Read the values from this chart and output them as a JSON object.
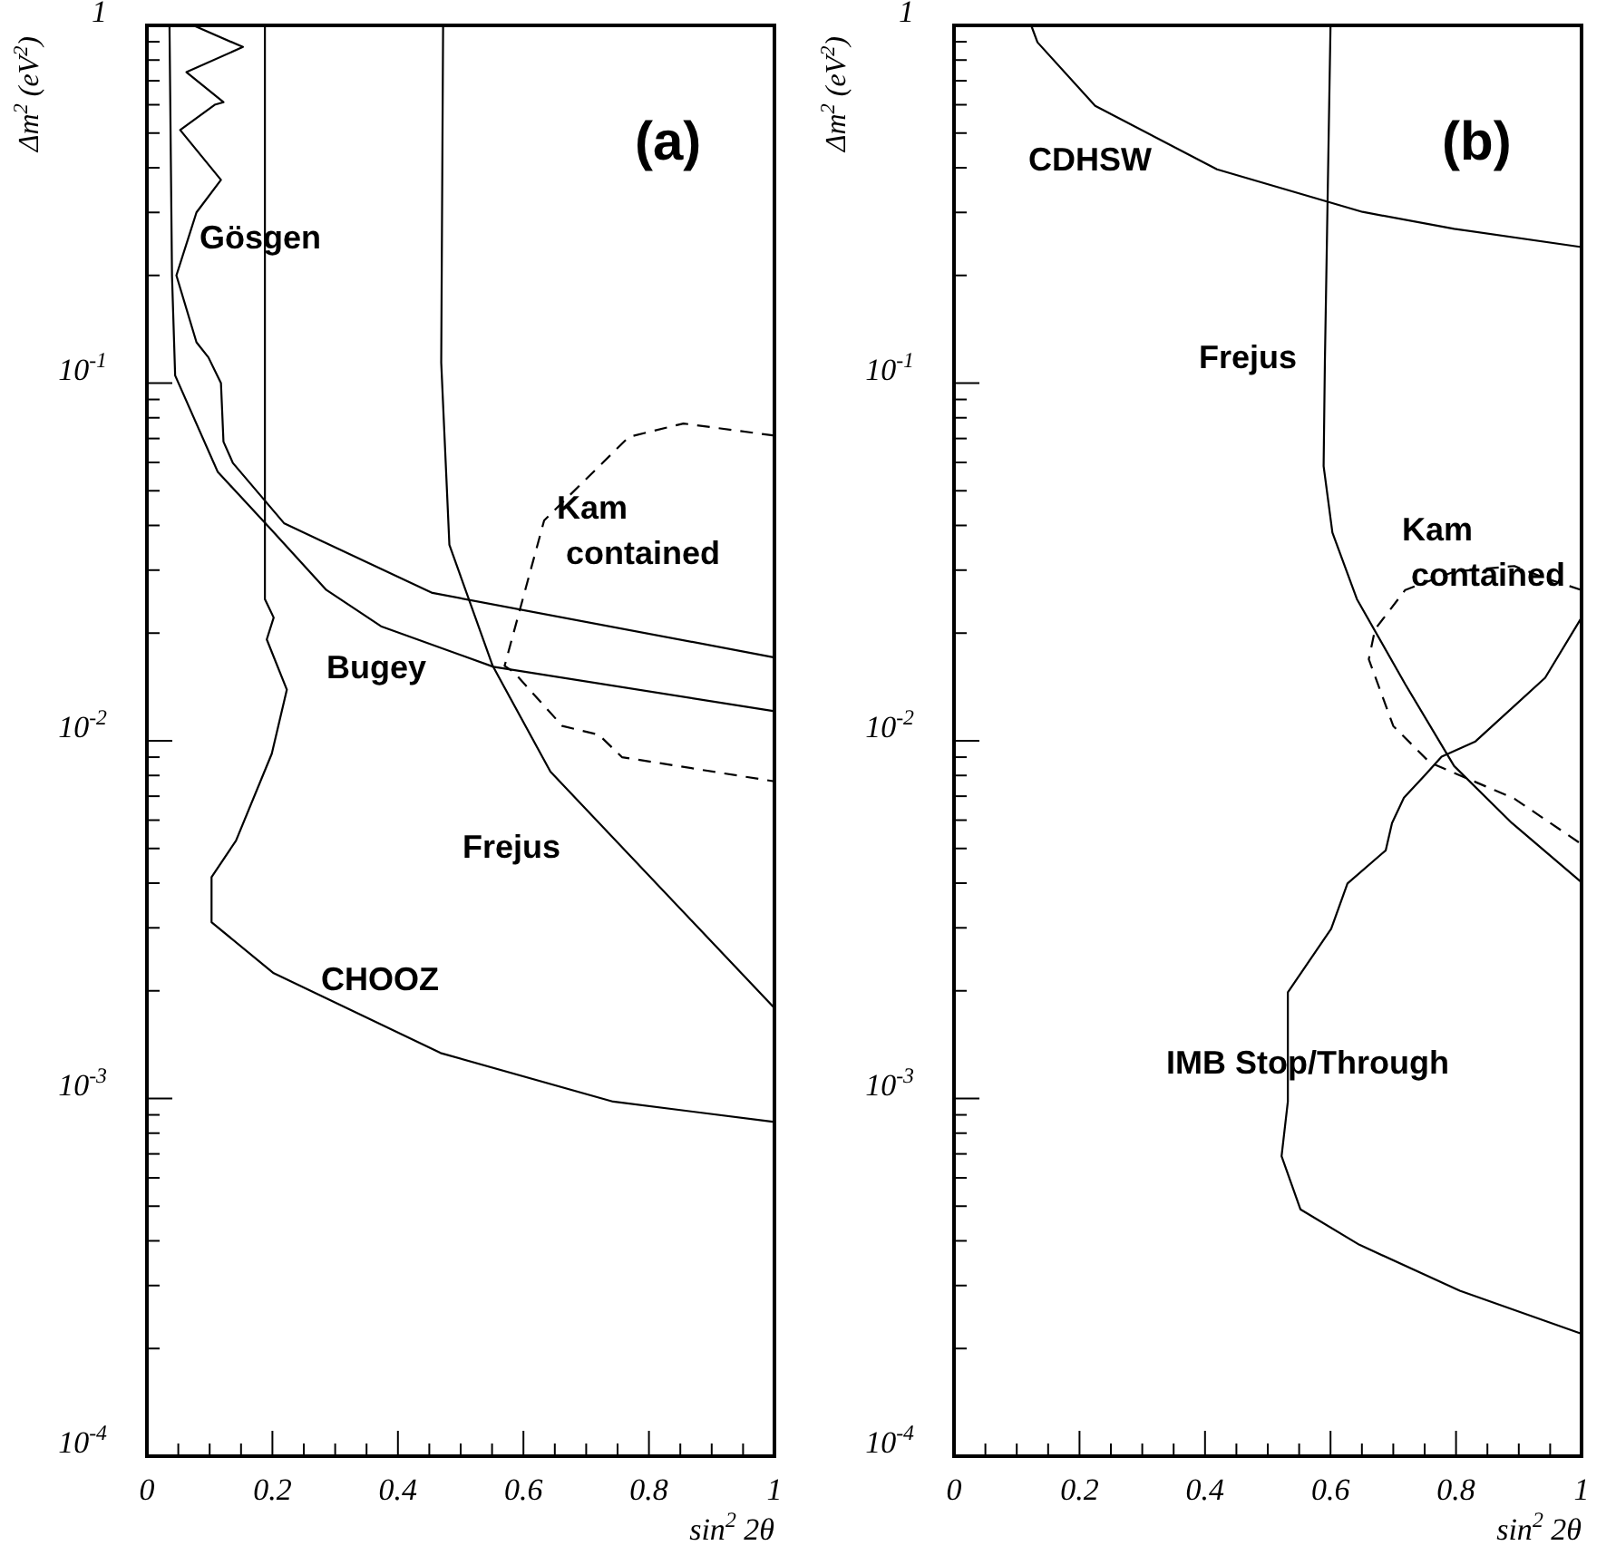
{
  "chart_data": [
    {
      "type": "line",
      "title": "(a)",
      "xlabel": "sin$^{2}$ 2θ",
      "ylabel": "Δm$^{2}$ (eV$^{2}$)",
      "log": "y",
      "xlim": [
        0,
        1
      ],
      "ylim": [
        0.0001,
        1
      ],
      "xticks": [
        0,
        {
          "value": 0.05,
          "label": null
        },
        {
          "value": 0.1,
          "label": null
        },
        {
          "value": 0.15,
          "label": null
        },
        0.2,
        {
          "value": 0.25,
          "label": null
        },
        {
          "value": 0.3,
          "label": null
        },
        {
          "value": 0.35,
          "label": null
        },
        0.4,
        {
          "value": 0.45,
          "label": null
        },
        {
          "value": 0.5,
          "label": null
        },
        {
          "value": 0.55,
          "label": null
        },
        0.6,
        {
          "value": 0.65,
          "label": null
        },
        {
          "value": 0.7,
          "label": null
        },
        {
          "value": 0.75,
          "label": null
        },
        0.8,
        {
          "value": 0.85,
          "label": null
        },
        {
          "value": 0.9,
          "label": null
        },
        {
          "value": 0.95,
          "label": null
        },
        1
      ],
      "yticks": [
        {
          "value": 0.0001,
          "label": "10$^{-4}$"
        },
        {
          "value": 0.0002,
          "label": null
        },
        {
          "value": 0.0003,
          "label": null
        },
        {
          "value": 0.0004,
          "label": null
        },
        {
          "value": 0.0005,
          "label": null
        },
        {
          "value": 0.0006,
          "label": null
        },
        {
          "value": 0.0007,
          "label": null
        },
        {
          "value": 0.0008,
          "label": null
        },
        {
          "value": 0.0009,
          "label": null
        },
        {
          "value": 0.001,
          "label": "10$^{-3}$"
        },
        {
          "value": 0.002,
          "label": null
        },
        {
          "value": 0.003,
          "label": null
        },
        {
          "value": 0.004,
          "label": null
        },
        {
          "value": 0.005,
          "label": null
        },
        {
          "value": 0.006,
          "label": null
        },
        {
          "value": 0.007,
          "label": null
        },
        {
          "value": 0.008,
          "label": null
        },
        {
          "value": 0.009,
          "label": null
        },
        {
          "value": 0.01,
          "label": "10$^{-2}$"
        },
        {
          "value": 0.02,
          "label": null
        },
        {
          "value": 0.03,
          "label": null
        },
        {
          "value": 0.04,
          "label": null
        },
        {
          "value": 0.05,
          "label": null
        },
        {
          "value": 0.06,
          "label": null
        },
        {
          "value": 0.07,
          "label": null
        },
        {
          "value": 0.08,
          "label": null
        },
        {
          "value": 0.09,
          "label": null
        },
        {
          "value": 0.1,
          "label": "10$^{-1}$"
        },
        {
          "value": 0.2,
          "label": null
        },
        {
          "value": 0.3,
          "label": null
        },
        {
          "value": 0.4,
          "label": null
        },
        {
          "value": 0.5,
          "label": null
        },
        {
          "value": 0.6,
          "label": null
        },
        {
          "value": 0.7,
          "label": null
        },
        {
          "value": 0.8,
          "label": null
        },
        {
          "value": 0.9,
          "label": null
        },
        1
      ],
      "series": [
        {
          "color": "#000000",
          "line_style": "solid",
          "x": [
            0.074,
            0.153,
            0.063,
            0.122,
            0.108,
            0.053,
            0.118,
            0.079,
            0.047,
            0.079,
            0.098,
            0.118,
            0.122,
            0.137,
            0.219,
            0.281,
            0.455,
            1.0
          ],
          "values": [
            1,
            0.87,
            0.74,
            0.61,
            0.6,
            0.51,
            0.37,
            0.3,
            0.2,
            0.13,
            0.118,
            0.1,
            0.0686,
            0.0598,
            0.0405,
            0.036,
            0.0259,
            0.0171
          ]
        },
        {
          "color": "#000000",
          "line_style": "solid",
          "x": [
            0.036,
            0.04,
            0.045,
            0.113,
            0.199,
            0.286,
            0.373,
            0.552,
            1.0
          ],
          "values": [
            1,
            0.199,
            0.105,
            0.0564,
            0.0388,
            0.0264,
            0.0209,
            0.0161,
            0.0121
          ]
        },
        {
          "color": "#000000",
          "line_style": "solid",
          "x": [
            0.188,
            0.188,
            0.202,
            0.191,
            0.223,
            0.199,
            0.142,
            0.103,
            0.103,
            0.202,
            0.468,
            0.743,
            1.0
          ],
          "values": [
            1,
            0.0249,
            0.0221,
            0.0192,
            0.0139,
            0.0092,
            0.00526,
            0.00416,
            0.00311,
            0.00224,
            0.00134,
            0.00098,
            0.00086
          ]
        },
        {
          "color": "#000000",
          "line_style": "solid",
          "x": [
            0.472,
            0.469,
            0.482,
            0.551,
            0.643,
            1.0
          ],
          "values": [
            1,
            0.114,
            0.0353,
            0.0162,
            0.0082,
            0.00179
          ]
        },
        {
          "color": "#000000",
          "line_style": "dashed",
          "x": [
            1.0,
            0.855,
            0.768,
            0.633,
            0.57,
            0.584,
            0.662,
            0.72,
            0.757,
            1.0
          ],
          "values": [
            0.0713,
            0.0771,
            0.0707,
            0.0413,
            0.0162,
            0.0156,
            0.011,
            0.0104,
            0.009,
            0.0077
          ]
        }
      ],
      "annotations": [
        "Gösgen",
        "Bugey",
        "Kam\ncontained",
        "Frejus",
        "CHOOZ"
      ]
    },
    {
      "type": "line",
      "title": "(b)",
      "xlabel": "sin$^{2}$ 2θ",
      "ylabel": "Δm$^{2}$ (eV$^{2}$)",
      "log": "y",
      "xlim": [
        0,
        1
      ],
      "ylim": [
        0.0001,
        1
      ],
      "xticks": [
        0,
        {
          "value": 0.05,
          "label": null
        },
        {
          "value": 0.1,
          "label": null
        },
        {
          "value": 0.15,
          "label": null
        },
        0.2,
        {
          "value": 0.25,
          "label": null
        },
        {
          "value": 0.3,
          "label": null
        },
        {
          "value": 0.35,
          "label": null
        },
        0.4,
        {
          "value": 0.45,
          "label": null
        },
        {
          "value": 0.5,
          "label": null
        },
        {
          "value": 0.55,
          "label": null
        },
        0.6,
        {
          "value": 0.65,
          "label": null
        },
        {
          "value": 0.7,
          "label": null
        },
        {
          "value": 0.75,
          "label": null
        },
        0.8,
        {
          "value": 0.85,
          "label": null
        },
        {
          "value": 0.9,
          "label": null
        },
        {
          "value": 0.95,
          "label": null
        },
        1
      ],
      "yticks": [
        {
          "value": 0.0001,
          "label": "10$^{-4}$"
        },
        {
          "value": 0.0002,
          "label": null
        },
        {
          "value": 0.0003,
          "label": null
        },
        {
          "value": 0.0004,
          "label": null
        },
        {
          "value": 0.0005,
          "label": null
        },
        {
          "value": 0.0006,
          "label": null
        },
        {
          "value": 0.0007,
          "label": null
        },
        {
          "value": 0.0008,
          "label": null
        },
        {
          "value": 0.0009,
          "label": null
        },
        {
          "value": 0.001,
          "label": "10$^{-3}$"
        },
        {
          "value": 0.002,
          "label": null
        },
        {
          "value": 0.003,
          "label": null
        },
        {
          "value": 0.004,
          "label": null
        },
        {
          "value": 0.005,
          "label": null
        },
        {
          "value": 0.006,
          "label": null
        },
        {
          "value": 0.007,
          "label": null
        },
        {
          "value": 0.008,
          "label": null
        },
        {
          "value": 0.009,
          "label": null
        },
        {
          "value": 0.01,
          "label": "10$^{-2}$"
        },
        {
          "value": 0.02,
          "label": null
        },
        {
          "value": 0.03,
          "label": null
        },
        {
          "value": 0.04,
          "label": null
        },
        {
          "value": 0.05,
          "label": null
        },
        {
          "value": 0.06,
          "label": null
        },
        {
          "value": 0.07,
          "label": null
        },
        {
          "value": 0.08,
          "label": null
        },
        {
          "value": 0.09,
          "label": null
        },
        {
          "value": 0.1,
          "label": "10$^{-1}$"
        },
        {
          "value": 0.2,
          "label": null
        },
        {
          "value": 0.3,
          "label": null
        },
        {
          "value": 0.4,
          "label": null
        },
        {
          "value": 0.5,
          "label": null
        },
        {
          "value": 0.6,
          "label": null
        },
        {
          "value": 0.7,
          "label": null
        },
        {
          "value": 0.8,
          "label": null
        },
        {
          "value": 0.9,
          "label": null
        },
        1
      ],
      "series": [
        {
          "color": "#000000",
          "line_style": "solid",
          "x": [
            0.123,
            0.133,
            0.225,
            0.419,
            0.651,
            0.797,
            1.0
          ],
          "values": [
            1,
            0.897,
            0.596,
            0.396,
            0.301,
            0.27,
            0.24
          ]
        },
        {
          "color": "#000000",
          "line_style": "solid",
          "x": [
            0.6,
            0.591,
            0.589,
            0.603,
            0.642,
            0.719,
            0.797,
            0.889,
            1.0
          ],
          "values": [
            1,
            0.114,
            0.0586,
            0.0382,
            0.0249,
            0.0144,
            0.0085,
            0.00589,
            0.00402
          ]
        },
        {
          "color": "#000000",
          "line_style": "dashed",
          "x": [
            1.0,
            0.942,
            0.893,
            0.797,
            0.719,
            0.671,
            0.661,
            0.7,
            0.758,
            0.893,
            1.0
          ],
          "values": [
            0.0264,
            0.0285,
            0.0308,
            0.0297,
            0.0264,
            0.0205,
            0.0169,
            0.011,
            0.0087,
            0.00689,
            0.00514
          ]
        },
        {
          "color": "#000000",
          "line_style": "solid",
          "x": [
            1.0,
            0.942,
            0.831,
            0.777,
            0.751,
            0.717,
            0.698,
            0.688,
            0.627,
            0.601,
            0.532,
            0.532,
            0.522,
            0.552,
            0.646,
            0.806,
            1.0
          ],
          "values": [
            0.0221,
            0.015,
            0.00996,
            0.00903,
            0.00803,
            0.00693,
            0.00589,
            0.00494,
            0.00399,
            0.00298,
            0.00198,
            0.00098,
            0.00069,
            0.00049,
            0.00039,
            0.00029,
            0.00022
          ]
        }
      ],
      "annotations": [
        "CDHSW",
        "Frejus",
        "Kam\ncontained",
        "IMB Stop/Through"
      ]
    }
  ]
}
